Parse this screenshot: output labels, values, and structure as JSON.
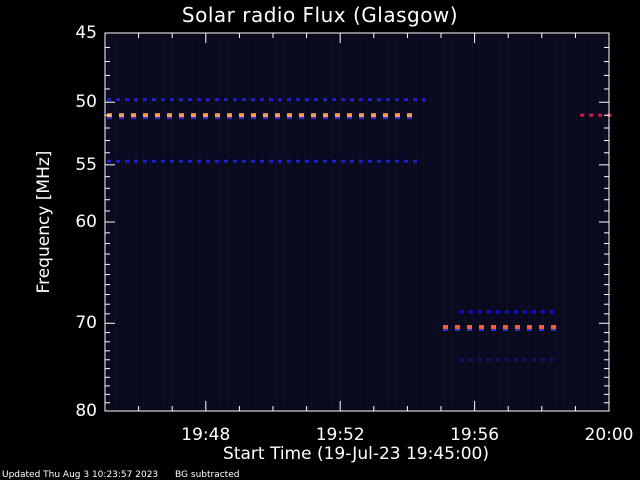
{
  "chart_data": {
    "type": "heatmap",
    "title": "Solar radio Flux (Glasgow)",
    "xlabel": "Start Time (19-Jul-23 19:45:00)",
    "ylabel": "Frequency [MHz]",
    "x_tick_labels": [
      "19:48",
      "19:52",
      "19:56",
      "20:00"
    ],
    "y_tick_labels": [
      "45",
      "50",
      "55",
      "60",
      "70",
      "80"
    ],
    "xlim": [
      "19:45:00",
      "20:00:00"
    ],
    "ylim_mhz": [
      45,
      80
    ],
    "y_scale": "log",
    "colormap": "dark blue to red to orange (intensity)",
    "background_color": "#0a0a1e",
    "features": [
      {
        "freq_mhz": 49.8,
        "start": "19:45:00",
        "end": "19:54:30",
        "intensity": "low",
        "color": "#2020c0"
      },
      {
        "freq_mhz": 51.0,
        "start": "19:45:00",
        "end": "19:54:15",
        "intensity": "high",
        "color": "#ff9a50"
      },
      {
        "freq_mhz": 51.0,
        "start": "19:59:05",
        "end": "20:00:00",
        "intensity": "medium",
        "color": "#d02040"
      },
      {
        "freq_mhz": 54.7,
        "start": "19:45:00",
        "end": "19:54:15",
        "intensity": "low",
        "color": "#2020c8"
      },
      {
        "freq_mhz": 68.8,
        "start": "19:55:30",
        "end": "19:58:20",
        "intensity": "low",
        "color": "#1010e0"
      },
      {
        "freq_mhz": 70.4,
        "start": "19:55:00",
        "end": "19:58:20",
        "intensity": "high",
        "color": "#ff5a3a"
      },
      {
        "freq_mhz": 74.0,
        "start": "19:55:30",
        "end": "19:58:20",
        "intensity": "very-low",
        "color": "#141470"
      }
    ]
  },
  "footer": {
    "updated": "Updated Thu Aug  3 10:23:57 2023",
    "note": "BG subtracted"
  }
}
